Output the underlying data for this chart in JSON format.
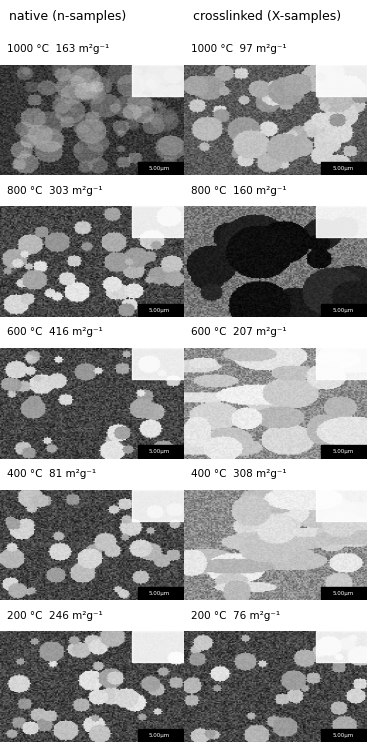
{
  "title_left": "native (n-samples)",
  "title_right": "crosslinked (X-samples)",
  "rows": [
    {
      "temp_left": "1000 °C",
      "bet_left": "163 m²g⁻¹",
      "temp_right": "1000 °C",
      "bet_right": "97 m²g⁻¹"
    },
    {
      "temp_left": "800 °C",
      "bet_left": "303 m²g⁻¹",
      "temp_right": "800 °C",
      "bet_right": "160 m²g⁻¹"
    },
    {
      "temp_left": "600 °C",
      "bet_left": "416 m²g⁻¹",
      "temp_right": "600 °C",
      "bet_right": "207 m²g⁻¹"
    },
    {
      "temp_left": "400 °C",
      "bet_left": "81 m²g⁻¹",
      "temp_right": "400 °C",
      "bet_right": "308 m²g⁻¹"
    },
    {
      "temp_left": "200 °C",
      "bet_left": "246 m²g⁻¹",
      "temp_right": "200 °C",
      "bet_right": "76 m²g⁻¹"
    }
  ],
  "scale_bar_text": "5.00μm",
  "background_color": "#ffffff",
  "text_color": "#000000",
  "title_fontsize": 9,
  "label_fontsize": 7.5,
  "fig_width": 3.67,
  "fig_height": 7.42,
  "dpi": 100
}
